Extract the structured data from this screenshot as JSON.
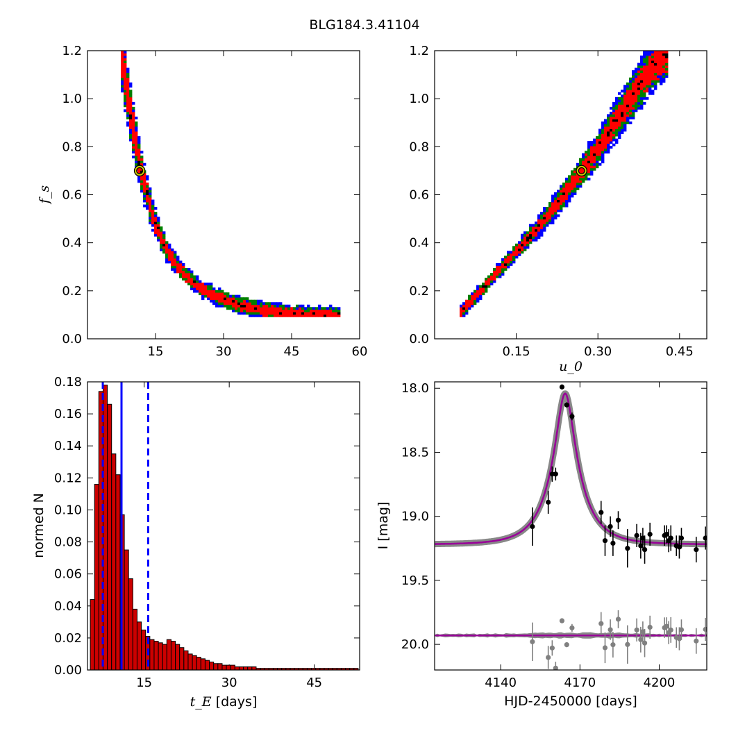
{
  "figure_title": "BLG184.3.41104",
  "colors": {
    "sigma1": "#ff0000",
    "sigma2": "#007f00",
    "sigma3": "#0000ff",
    "best": "#000000",
    "marker_edge": "#cccc00",
    "hist_bar": "#cc0000",
    "vline": "#0000ff",
    "model": "#990099",
    "band": "#888888",
    "points": "#000000",
    "residual_points": "#808080"
  },
  "chart_data": [
    {
      "id": "panel-fs-vs-tE",
      "type": "heatmap",
      "xlabel": "",
      "ylabel": "f_s",
      "xlim": [
        0,
        60
      ],
      "ylim": [
        0,
        1.2
      ],
      "xticks": [
        15,
        30,
        45,
        60
      ],
      "yticks": [
        0.0,
        0.2,
        0.4,
        0.6,
        0.8,
        1.0,
        1.2
      ],
      "ridge": {
        "x": [
          7.5,
          8,
          9,
          10,
          11,
          12,
          13,
          14,
          15,
          16,
          17,
          18,
          20,
          22,
          25,
          28,
          32,
          36,
          42,
          50,
          56
        ],
        "y": [
          1.2,
          1.12,
          1.0,
          0.88,
          0.78,
          0.69,
          0.61,
          0.54,
          0.48,
          0.43,
          0.39,
          0.35,
          0.3,
          0.26,
          0.21,
          0.18,
          0.15,
          0.13,
          0.11,
          0.1,
          0.1
        ]
      },
      "best_fit": {
        "x": 11.5,
        "y": 0.7
      }
    },
    {
      "id": "panel-fs-vs-u0",
      "type": "heatmap",
      "xlabel": "u_0",
      "ylabel": "",
      "xlim": [
        0.0,
        0.5
      ],
      "ylim": [
        0,
        1.2
      ],
      "xticks": [
        0.15,
        0.3,
        0.45
      ],
      "yticks": [
        0.0,
        0.2,
        0.4,
        0.6,
        0.8,
        1.0,
        1.2
      ],
      "ridge": {
        "x": [
          0.045,
          0.06,
          0.08,
          0.1,
          0.12,
          0.14,
          0.16,
          0.18,
          0.2,
          0.22,
          0.24,
          0.26,
          0.28,
          0.3,
          0.32,
          0.34,
          0.36,
          0.38,
          0.4,
          0.42,
          0.43
        ],
        "y": [
          0.1,
          0.14,
          0.19,
          0.24,
          0.29,
          0.34,
          0.39,
          0.44,
          0.49,
          0.55,
          0.61,
          0.67,
          0.73,
          0.79,
          0.86,
          0.93,
          1.0,
          1.07,
          1.13,
          1.18,
          1.2
        ]
      },
      "best_fit": {
        "x": 0.27,
        "y": 0.7
      }
    },
    {
      "id": "panel-tE-histogram",
      "type": "bar",
      "xlabel": "t_E",
      "xlabel_unit": "[days]",
      "ylabel": "normed N",
      "xlim": [
        5,
        53
      ],
      "ylim": [
        0,
        0.18
      ],
      "xticks": [
        15,
        30,
        45
      ],
      "yticks": [
        0.0,
        0.02,
        0.04,
        0.06,
        0.08,
        0.1,
        0.12,
        0.14,
        0.16,
        0.18
      ],
      "bin_width": 0.75,
      "bin_start": 5.5,
      "values": [
        0.044,
        0.116,
        0.174,
        0.178,
        0.166,
        0.135,
        0.122,
        0.097,
        0.075,
        0.057,
        0.038,
        0.03,
        0.025,
        0.021,
        0.019,
        0.018,
        0.017,
        0.016,
        0.019,
        0.018,
        0.016,
        0.014,
        0.012,
        0.01,
        0.009,
        0.008,
        0.007,
        0.006,
        0.005,
        0.004,
        0.004,
        0.003,
        0.003,
        0.003,
        0.002,
        0.002,
        0.002,
        0.002,
        0.002,
        0.001,
        0.001,
        0.001,
        0.001,
        0.001,
        0.001,
        0.001,
        0.001,
        0.001,
        0.001,
        0.001,
        0.001,
        0.001,
        0.001,
        0.001,
        0.001,
        0.001,
        0.001,
        0.001,
        0.001,
        0.001,
        0.001,
        0.001,
        0.001
      ],
      "vlines": [
        {
          "x": 11.0,
          "style": "solid"
        },
        {
          "x": 7.7,
          "style": "dashed"
        },
        {
          "x": 15.7,
          "style": "dashed"
        }
      ]
    },
    {
      "id": "panel-lightcurve",
      "type": "line",
      "xlabel": "HJD-2450000 [days]",
      "ylabel": "I [mag]",
      "xlim": [
        4115,
        4218
      ],
      "ylim": [
        20.2,
        17.95
      ],
      "xticks": [
        4140,
        4170,
        4200
      ],
      "yticks": [
        18.0,
        18.5,
        19.0,
        19.5,
        20.0
      ],
      "model": {
        "t0": 4164.4,
        "tE": 11.5,
        "u0": 0.27,
        "fs": 0.7,
        "base_mag": 19.22
      },
      "residual_baseline": 19.93,
      "points": [
        {
          "x": 4152.0,
          "y": 19.08,
          "err": 0.15
        },
        {
          "x": 4158.0,
          "y": 18.89,
          "err": 0.09
        },
        {
          "x": 4159.5,
          "y": 18.67,
          "err": 0.06
        },
        {
          "x": 4160.8,
          "y": 18.67,
          "err": 0.05
        },
        {
          "x": 4163.2,
          "y": 17.99,
          "err": 0.02
        },
        {
          "x": 4165.0,
          "y": 18.13,
          "err": 0.02
        },
        {
          "x": 4167.0,
          "y": 18.22,
          "err": 0.03
        },
        {
          "x": 4178.0,
          "y": 18.97,
          "err": 0.09
        },
        {
          "x": 4179.5,
          "y": 19.19,
          "err": 0.12
        },
        {
          "x": 4181.5,
          "y": 19.08,
          "err": 0.08
        },
        {
          "x": 4182.5,
          "y": 19.21,
          "err": 0.1
        },
        {
          "x": 4184.5,
          "y": 19.03,
          "err": 0.07
        },
        {
          "x": 4188.0,
          "y": 19.25,
          "err": 0.15
        },
        {
          "x": 4191.5,
          "y": 19.15,
          "err": 0.09
        },
        {
          "x": 4193.0,
          "y": 19.23,
          "err": 0.1
        },
        {
          "x": 4193.8,
          "y": 19.17,
          "err": 0.08
        },
        {
          "x": 4194.5,
          "y": 19.26,
          "err": 0.11
        },
        {
          "x": 4196.5,
          "y": 19.14,
          "err": 0.09
        },
        {
          "x": 4202.0,
          "y": 19.15,
          "err": 0.08
        },
        {
          "x": 4202.8,
          "y": 19.14,
          "err": 0.07
        },
        {
          "x": 4203.6,
          "y": 19.19,
          "err": 0.09
        },
        {
          "x": 4204.4,
          "y": 19.17,
          "err": 0.1
        },
        {
          "x": 4206.5,
          "y": 19.23,
          "err": 0.08
        },
        {
          "x": 4207.6,
          "y": 19.24,
          "err": 0.09
        },
        {
          "x": 4208.4,
          "y": 19.17,
          "err": 0.08
        },
        {
          "x": 4214.0,
          "y": 19.26,
          "err": 0.1
        },
        {
          "x": 4217.5,
          "y": 19.17,
          "err": 0.09
        }
      ]
    }
  ]
}
